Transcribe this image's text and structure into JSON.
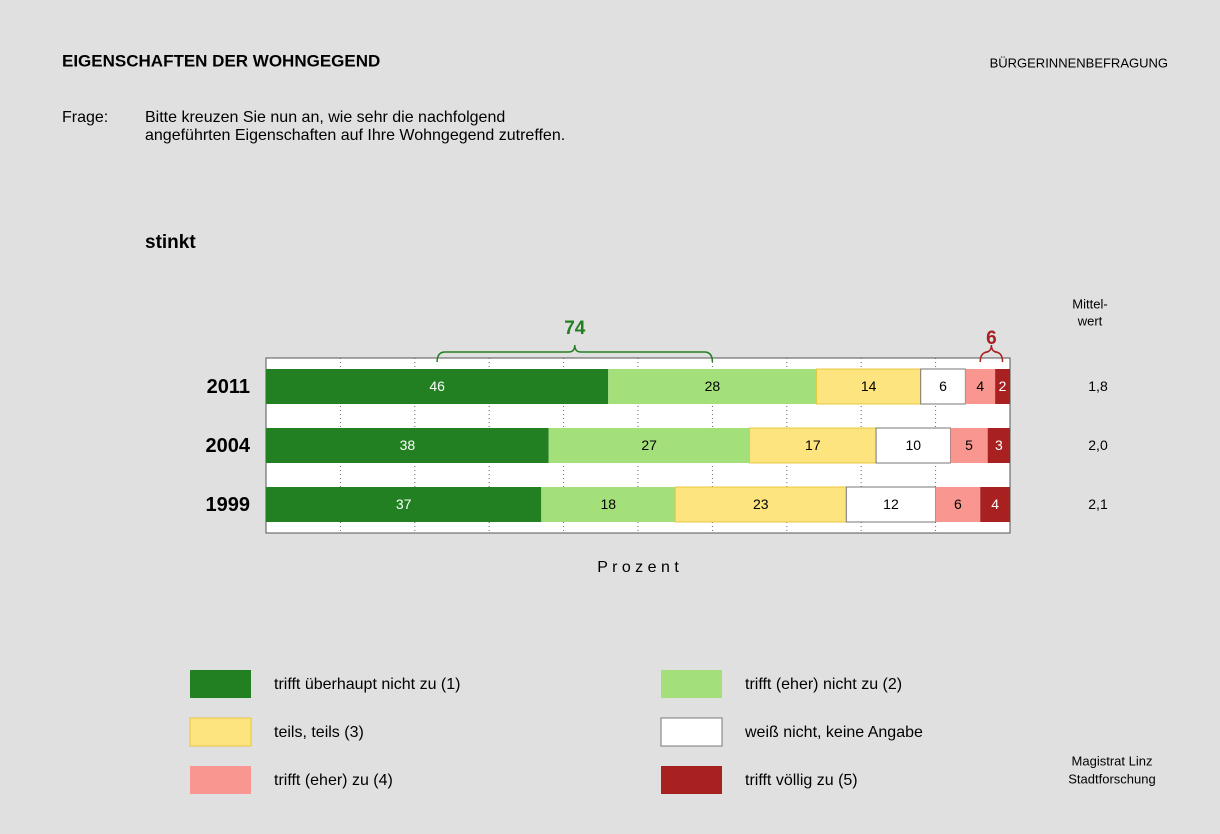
{
  "header": {
    "title": "EIGENSCHAFTEN  DER  WOHNGEGEND",
    "source_top": "BÜRGERINNENBEFRAGUNG",
    "question_label": "Frage:",
    "question": [
      "Bitte kreuzen Sie nun an, wie sehr die nachfolgend",
      "angeführten Eigenschaften auf Ihre Wohngegend zutreffen."
    ]
  },
  "chart_data": {
    "type": "stacked_bar_horizontal",
    "subtitle": "stinkt",
    "x_label": "P r o z e n t",
    "categories": [
      "2011",
      "2004",
      "1999"
    ],
    "xlim": [
      0,
      100
    ],
    "xticks": [
      10,
      20,
      30,
      40,
      50,
      60,
      70,
      80,
      90
    ],
    "tick_labels": false,
    "grid": true,
    "series": [
      {
        "name": "trifft überhaupt nicht zu (1)",
        "color": "#228022",
        "values": [
          46,
          38,
          37
        ]
      },
      {
        "name": "trifft (eher) nicht zu (2)",
        "color": "#a4e07a",
        "values": [
          28,
          27,
          18
        ]
      },
      {
        "name": "teils, teils (3)",
        "color": "#fde47f",
        "values": [
          14,
          17,
          23
        ]
      },
      {
        "name": "weiß nicht, keine Angabe",
        "color": "#ffffff",
        "values": [
          6,
          10,
          12
        ]
      },
      {
        "name": "trifft (eher) zu (4)",
        "color": "#f99690",
        "values": [
          4,
          5,
          6
        ]
      },
      {
        "name": "trifft völlig zu (5)",
        "color": "#a82020",
        "values": [
          2,
          3,
          4
        ]
      }
    ],
    "annotations": [
      {
        "text": "74",
        "series": [
          0,
          1
        ],
        "color": "#228022"
      },
      {
        "text": "6",
        "series": [
          4,
          5
        ],
        "color": "#a82020"
      }
    ],
    "mean": {
      "header": [
        "Mittel-",
        "wert"
      ],
      "values": [
        1.8,
        2.0,
        2.1
      ],
      "value_labels": [
        "1,8",
        "2,0",
        "2,1"
      ]
    }
  },
  "footer": [
    "Magistrat Linz",
    "Stadtforschung"
  ]
}
